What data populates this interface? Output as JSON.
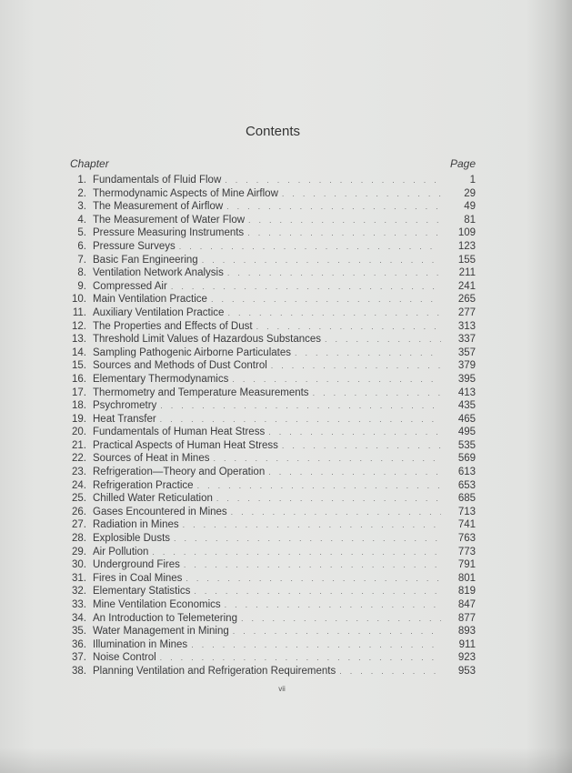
{
  "title": "Contents",
  "header": {
    "chapter": "Chapter",
    "page": "Page"
  },
  "chapters": [
    {
      "num": "1.",
      "title": "Fundamentals of Fluid Flow",
      "page": "1"
    },
    {
      "num": "2.",
      "title": "Thermodynamic Aspects of Mine Airflow",
      "page": "29"
    },
    {
      "num": "3.",
      "title": "The Measurement of Airflow",
      "page": "49"
    },
    {
      "num": "4.",
      "title": "The Measurement of Water Flow",
      "page": "81"
    },
    {
      "num": "5.",
      "title": "Pressure Measuring Instruments",
      "page": "109"
    },
    {
      "num": "6.",
      "title": "Pressure Surveys",
      "page": "123"
    },
    {
      "num": "7.",
      "title": "Basic Fan Engineering",
      "page": "155"
    },
    {
      "num": "8.",
      "title": "Ventilation Network Analysis",
      "page": "211"
    },
    {
      "num": "9.",
      "title": "Compressed Air",
      "page": "241"
    },
    {
      "num": "10.",
      "title": "Main Ventilation Practice",
      "page": "265"
    },
    {
      "num": "11.",
      "title": "Auxiliary Ventilation Practice",
      "page": "277"
    },
    {
      "num": "12.",
      "title": "The Properties and Effects of Dust",
      "page": "313"
    },
    {
      "num": "13.",
      "title": "Threshold Limit Values of Hazardous Substances",
      "page": "337"
    },
    {
      "num": "14.",
      "title": "Sampling Pathogenic Airborne Particulates",
      "page": "357"
    },
    {
      "num": "15.",
      "title": "Sources and Methods of Dust Control",
      "page": "379"
    },
    {
      "num": "16.",
      "title": "Elementary Thermodynamics",
      "page": "395"
    },
    {
      "num": "17.",
      "title": "Thermometry and Temperature Measurements",
      "page": "413"
    },
    {
      "num": "18.",
      "title": "Psychrometry",
      "page": "435"
    },
    {
      "num": "19.",
      "title": "Heat Transfer",
      "page": "465"
    },
    {
      "num": "20.",
      "title": "Fundamentals of Human Heat Stress",
      "page": "495"
    },
    {
      "num": "21.",
      "title": "Practical Aspects of Human Heat Stress",
      "page": "535"
    },
    {
      "num": "22.",
      "title": "Sources of Heat in Mines",
      "page": "569"
    },
    {
      "num": "23.",
      "title": "Refrigeration—Theory and Operation",
      "page": "613"
    },
    {
      "num": "24.",
      "title": "Refrigeration Practice",
      "page": "653"
    },
    {
      "num": "25.",
      "title": "Chilled Water Reticulation",
      "page": "685"
    },
    {
      "num": "26.",
      "title": "Gases Encountered in Mines",
      "page": "713"
    },
    {
      "num": "27.",
      "title": "Radiation in Mines",
      "page": "741"
    },
    {
      "num": "28.",
      "title": "Explosible Dusts",
      "page": "763"
    },
    {
      "num": "29.",
      "title": "Air Pollution",
      "page": "773"
    },
    {
      "num": "30.",
      "title": "Underground Fires",
      "page": "791"
    },
    {
      "num": "31.",
      "title": "Fires in Coal Mines",
      "page": "801"
    },
    {
      "num": "32.",
      "title": "Elementary Statistics",
      "page": "819"
    },
    {
      "num": "33.",
      "title": "Mine Ventilation Economics",
      "page": "847"
    },
    {
      "num": "34.",
      "title": "An Introduction to Telemetering",
      "page": "877"
    },
    {
      "num": "35.",
      "title": "Water Management in Mining",
      "page": "893"
    },
    {
      "num": "36.",
      "title": "Illumination in Mines",
      "page": "911"
    },
    {
      "num": "37.",
      "title": "Noise Control",
      "page": "923"
    },
    {
      "num": "38.",
      "title": "Planning Ventilation and Refrigeration Requirements",
      "page": "953"
    }
  ],
  "folio": "vii"
}
